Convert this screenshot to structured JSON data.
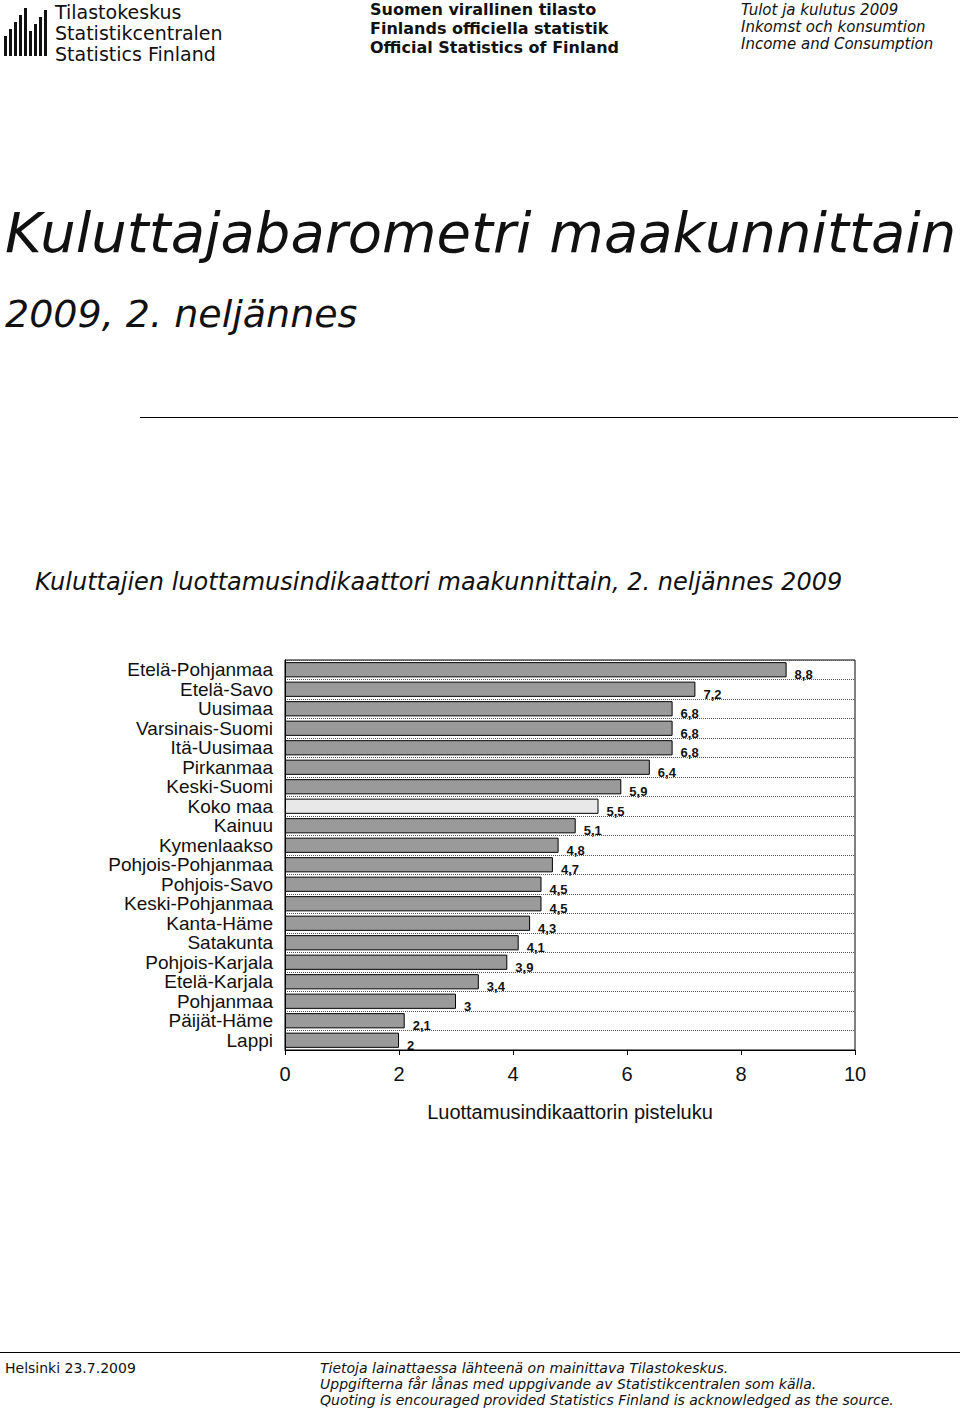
{
  "page": {
    "header": {
      "org": [
        "Tilastokeskus",
        "Statistikcentralen",
        "Statistics Finland"
      ],
      "official": [
        "Suomen virallinen tilasto",
        "Finlands officiella statistik",
        "Official Statistics of Finland"
      ],
      "topic": [
        "Tulot ja kulutus 2009",
        "Inkomst och konsumtion",
        "Income and Consumption"
      ]
    },
    "title": "Kuluttajabarometri maakunnittain",
    "subtitle": "2009, 2. neljännes",
    "footer": {
      "place_date": "Helsinki 23.7.2009",
      "notes": [
        "Tietoja lainattaessa lähteenä on mainittava Tilastokeskus.",
        "Uppgifterna får lånas med uppgivande av Statistikcentralen som källa.",
        "Quoting is encouraged provided Statistics Finland is acknowledged as the source."
      ]
    }
  },
  "chart_data": {
    "type": "bar",
    "orientation": "horizontal",
    "title": "Kuluttajien luottamusindikaattori maakunnittain, 2. neljännes 2009",
    "x_label": "Luottamusindikaattorin pisteluku",
    "categories": [
      "Etelä-Pohjanmaa",
      "Etelä-Savo",
      "Uusimaa",
      "Varsinais-Suomi",
      "Itä-Uusimaa",
      "Pirkanmaa",
      "Keski-Suomi",
      "Koko maa",
      "Kainuu",
      "Kymenlaakso",
      "Pohjois-Pohjanmaa",
      "Pohjois-Savo",
      "Keski-Pohjanmaa",
      "Kanta-Häme",
      "Satakunta",
      "Pohjois-Karjala",
      "Etelä-Karjala",
      "Pohjanmaa",
      "Päijät-Häme",
      "Lappi"
    ],
    "values": [
      8.8,
      7.2,
      6.8,
      6.8,
      6.8,
      6.4,
      5.9,
      5.5,
      5.1,
      4.8,
      4.7,
      4.5,
      4.5,
      4.3,
      4.1,
      3.9,
      3.4,
      3,
      2.1,
      2
    ],
    "value_labels": [
      "8,8",
      "7,2",
      "6,8",
      "6,8",
      "6,8",
      "6,4",
      "5,9",
      "5,5",
      "5,1",
      "4,8",
      "4,7",
      "4,5",
      "4,5",
      "4,3",
      "4,1",
      "3,9",
      "3,4",
      "3",
      "2,1",
      "2"
    ],
    "colors": [
      "#9a9a9a",
      "#9a9a9a",
      "#9a9a9a",
      "#9a9a9a",
      "#9a9a9a",
      "#9a9a9a",
      "#9a9a9a",
      "#e8e8e8",
      "#9a9a9a",
      "#9a9a9a",
      "#9a9a9a",
      "#9a9a9a",
      "#9a9a9a",
      "#9a9a9a",
      "#9a9a9a",
      "#9a9a9a",
      "#9a9a9a",
      "#9a9a9a",
      "#9a9a9a",
      "#9a9a9a"
    ],
    "xlim": [
      0,
      10
    ],
    "xticks": [
      0,
      2,
      4,
      6,
      8,
      10
    ],
    "data_labels": true,
    "grid": true
  }
}
